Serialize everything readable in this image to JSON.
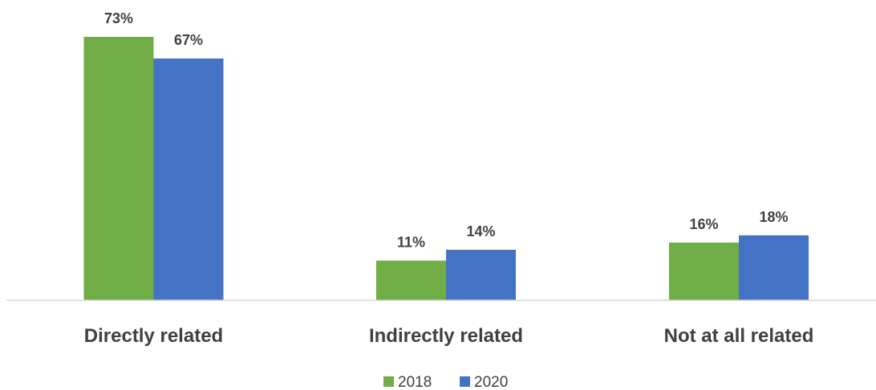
{
  "chart_data": {
    "type": "bar",
    "categories": [
      "Directly related",
      "Indirectly related",
      "Not at all related"
    ],
    "series": [
      {
        "name": "2018",
        "values": [
          73,
          11,
          16
        ],
        "color": "#70ad47"
      },
      {
        "name": "2020",
        "values": [
          67,
          14,
          18
        ],
        "color": "#4472c4"
      }
    ],
    "value_suffix": "%",
    "ylim": [
      0,
      80
    ],
    "grid": false,
    "legend_position": "bottom"
  }
}
